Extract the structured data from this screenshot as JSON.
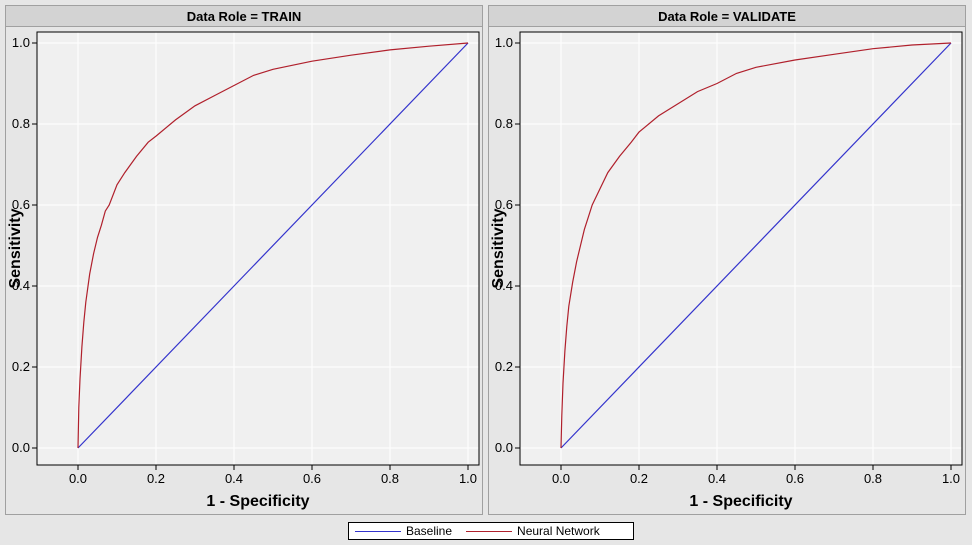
{
  "chart_data": [
    {
      "type": "line",
      "title": "Data Role = TRAIN",
      "xlabel": "1 - Specificity",
      "ylabel": "Sensitivity",
      "xlim": [
        0,
        1
      ],
      "ylim": [
        0,
        1
      ],
      "xticks": [
        "0.0",
        "0.2",
        "0.4",
        "0.6",
        "0.8",
        "1.0"
      ],
      "yticks": [
        "0.0",
        "0.2",
        "0.4",
        "0.6",
        "0.8",
        "1.0"
      ],
      "grid": true,
      "series": [
        {
          "name": "Baseline",
          "color": "#3333cc",
          "x": [
            0,
            1
          ],
          "y": [
            0,
            1
          ]
        },
        {
          "name": "Neural Network",
          "color": "#b0202c",
          "x": [
            0,
            0.002,
            0.005,
            0.01,
            0.015,
            0.02,
            0.03,
            0.04,
            0.05,
            0.06,
            0.07,
            0.08,
            0.1,
            0.12,
            0.15,
            0.18,
            0.2,
            0.25,
            0.3,
            0.35,
            0.4,
            0.45,
            0.5,
            0.6,
            0.7,
            0.8,
            0.9,
            1.0
          ],
          "y": [
            0,
            0.1,
            0.17,
            0.25,
            0.31,
            0.36,
            0.43,
            0.48,
            0.52,
            0.55,
            0.585,
            0.6,
            0.65,
            0.68,
            0.72,
            0.755,
            0.77,
            0.81,
            0.845,
            0.87,
            0.895,
            0.92,
            0.935,
            0.955,
            0.97,
            0.983,
            0.992,
            1.0
          ]
        }
      ]
    },
    {
      "type": "line",
      "title": "Data Role = VALIDATE",
      "xlabel": "1 - Specificity",
      "ylabel": "Sensitivity",
      "xlim": [
        0,
        1
      ],
      "ylim": [
        0,
        1
      ],
      "xticks": [
        "0.0",
        "0.2",
        "0.4",
        "0.6",
        "0.8",
        "1.0"
      ],
      "yticks": [
        "0.0",
        "0.2",
        "0.4",
        "0.6",
        "0.8",
        "1.0"
      ],
      "grid": true,
      "series": [
        {
          "name": "Baseline",
          "color": "#3333cc",
          "x": [
            0,
            1
          ],
          "y": [
            0,
            1
          ]
        },
        {
          "name": "Neural Network",
          "color": "#b0202c",
          "x": [
            0,
            0.002,
            0.005,
            0.01,
            0.015,
            0.02,
            0.03,
            0.04,
            0.05,
            0.06,
            0.07,
            0.08,
            0.1,
            0.12,
            0.15,
            0.18,
            0.2,
            0.25,
            0.3,
            0.35,
            0.4,
            0.45,
            0.5,
            0.6,
            0.7,
            0.8,
            0.9,
            1.0
          ],
          "y": [
            0,
            0.08,
            0.16,
            0.24,
            0.3,
            0.35,
            0.41,
            0.46,
            0.5,
            0.54,
            0.57,
            0.6,
            0.64,
            0.68,
            0.72,
            0.755,
            0.78,
            0.82,
            0.85,
            0.88,
            0.9,
            0.925,
            0.94,
            0.958,
            0.972,
            0.986,
            0.995,
            1.0
          ]
        }
      ]
    }
  ],
  "legend": {
    "items": [
      {
        "label": "Baseline",
        "color": "#3333cc"
      },
      {
        "label": "Neural Network",
        "color": "#b0202c"
      }
    ]
  }
}
